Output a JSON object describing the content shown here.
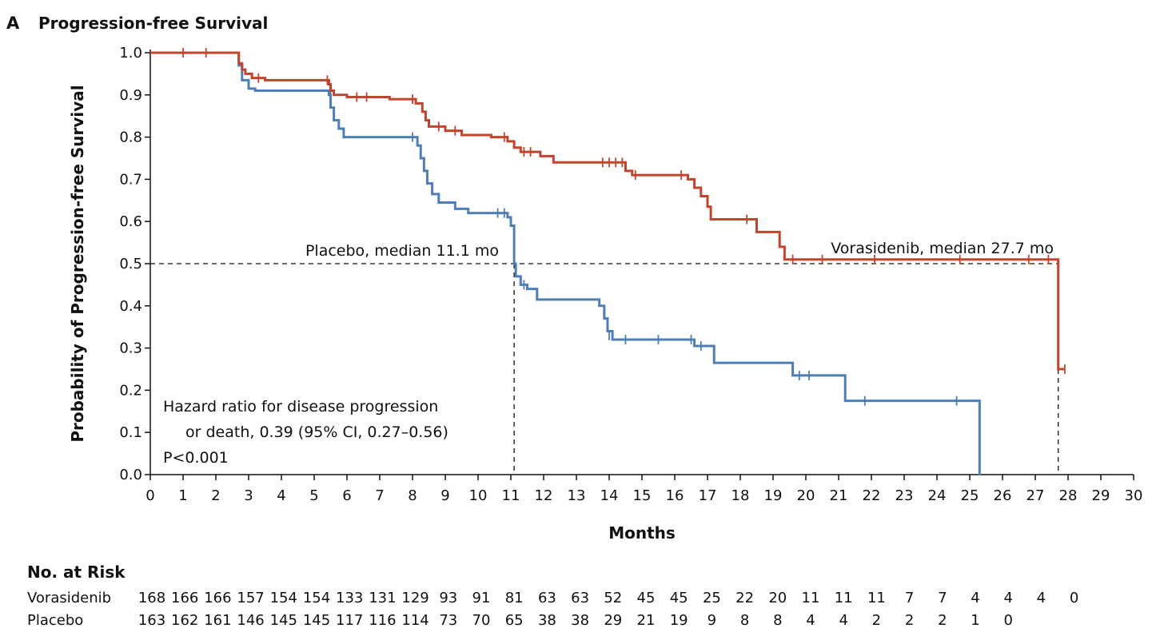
{
  "chart_data": {
    "type": "line",
    "panel_label": "A",
    "title": "Progression-free Survival",
    "xlabel": "Months",
    "ylabel": "Probability of Progression-free Survival",
    "xlim": [
      0,
      30
    ],
    "ylim": [
      0,
      1.0
    ],
    "xticks": [
      "0",
      "1",
      "2",
      "3",
      "4",
      "5",
      "6",
      "7",
      "8",
      "9",
      "10",
      "11",
      "12",
      "13",
      "14",
      "15",
      "16",
      "17",
      "18",
      "19",
      "20",
      "21",
      "22",
      "23",
      "24",
      "25",
      "26",
      "27",
      "28",
      "29",
      "30"
    ],
    "yticks": [
      "0.0",
      "0.1",
      "0.2",
      "0.3",
      "0.4",
      "0.5",
      "0.6",
      "0.7",
      "0.8",
      "0.9",
      "1.0"
    ],
    "colors": {
      "vorasidenib": "#c0452c",
      "placebo": "#4f7db8"
    },
    "series": [
      {
        "name": "Vorasidenib",
        "steps": [
          [
            0,
            1.0
          ],
          [
            2.7,
            0.975
          ],
          [
            2.8,
            0.96
          ],
          [
            2.9,
            0.95
          ],
          [
            3.1,
            0.94
          ],
          [
            3.5,
            0.935
          ],
          [
            5.45,
            0.925
          ],
          [
            5.5,
            0.91
          ],
          [
            5.6,
            0.9
          ],
          [
            6.0,
            0.895
          ],
          [
            7.3,
            0.89
          ],
          [
            8.1,
            0.88
          ],
          [
            8.3,
            0.86
          ],
          [
            8.4,
            0.84
          ],
          [
            8.5,
            0.825
          ],
          [
            9.0,
            0.815
          ],
          [
            9.5,
            0.805
          ],
          [
            10.4,
            0.8
          ],
          [
            10.9,
            0.79
          ],
          [
            11.1,
            0.775
          ],
          [
            11.3,
            0.765
          ],
          [
            11.9,
            0.755
          ],
          [
            12.3,
            0.74
          ],
          [
            14.5,
            0.72
          ],
          [
            14.7,
            0.71
          ],
          [
            16.4,
            0.7
          ],
          [
            16.6,
            0.68
          ],
          [
            16.8,
            0.66
          ],
          [
            17.0,
            0.635
          ],
          [
            17.1,
            0.605
          ],
          [
            18.5,
            0.575
          ],
          [
            19.2,
            0.54
          ],
          [
            19.35,
            0.51
          ],
          [
            27.7,
            0.25
          ],
          [
            27.9,
            0.25
          ]
        ],
        "censored": [
          [
            1.0,
            1.0
          ],
          [
            1.7,
            1.0
          ],
          [
            3.3,
            0.94
          ],
          [
            5.4,
            0.935
          ],
          [
            6.3,
            0.895
          ],
          [
            6.6,
            0.895
          ],
          [
            8.0,
            0.89
          ],
          [
            8.8,
            0.825
          ],
          [
            9.3,
            0.815
          ],
          [
            10.8,
            0.8
          ],
          [
            11.4,
            0.765
          ],
          [
            11.6,
            0.765
          ],
          [
            13.8,
            0.74
          ],
          [
            14.0,
            0.74
          ],
          [
            14.2,
            0.74
          ],
          [
            14.4,
            0.74
          ],
          [
            14.8,
            0.71
          ],
          [
            16.2,
            0.71
          ],
          [
            18.2,
            0.605
          ],
          [
            19.6,
            0.51
          ],
          [
            20.5,
            0.51
          ],
          [
            22.1,
            0.51
          ],
          [
            24.7,
            0.51
          ],
          [
            26.8,
            0.51
          ],
          [
            27.4,
            0.51
          ],
          [
            27.9,
            0.25
          ]
        ],
        "median_label": "Vorasidenib, median 27.7 mo",
        "median": 27.7
      },
      {
        "name": "Placebo",
        "steps": [
          [
            0,
            1.0
          ],
          [
            2.7,
            0.97
          ],
          [
            2.8,
            0.935
          ],
          [
            3.0,
            0.915
          ],
          [
            3.2,
            0.91
          ],
          [
            5.45,
            0.9
          ],
          [
            5.5,
            0.87
          ],
          [
            5.6,
            0.84
          ],
          [
            5.75,
            0.82
          ],
          [
            5.9,
            0.8
          ],
          [
            8.15,
            0.78
          ],
          [
            8.25,
            0.75
          ],
          [
            8.35,
            0.72
          ],
          [
            8.45,
            0.69
          ],
          [
            8.6,
            0.665
          ],
          [
            8.8,
            0.645
          ],
          [
            9.3,
            0.63
          ],
          [
            9.7,
            0.62
          ],
          [
            10.9,
            0.61
          ],
          [
            11.0,
            0.59
          ],
          [
            11.1,
            0.5
          ],
          [
            11.15,
            0.47
          ],
          [
            11.3,
            0.45
          ],
          [
            11.5,
            0.44
          ],
          [
            11.8,
            0.415
          ],
          [
            13.7,
            0.4
          ],
          [
            13.85,
            0.37
          ],
          [
            13.95,
            0.34
          ],
          [
            14.1,
            0.32
          ],
          [
            16.6,
            0.305
          ],
          [
            17.2,
            0.265
          ],
          [
            19.6,
            0.235
          ],
          [
            21.2,
            0.175
          ],
          [
            25.3,
            0.0
          ]
        ],
        "censored": [
          [
            5.5,
            0.91
          ],
          [
            8.0,
            0.8
          ],
          [
            10.6,
            0.62
          ],
          [
            10.8,
            0.62
          ],
          [
            11.1,
            0.58
          ],
          [
            11.4,
            0.45
          ],
          [
            14.0,
            0.33
          ],
          [
            14.5,
            0.32
          ],
          [
            15.5,
            0.32
          ],
          [
            16.5,
            0.32
          ],
          [
            16.8,
            0.305
          ],
          [
            19.8,
            0.235
          ],
          [
            20.1,
            0.235
          ],
          [
            21.8,
            0.175
          ],
          [
            24.6,
            0.175
          ],
          [
            25.3,
            0.01
          ]
        ],
        "median_label": "Placebo, median 11.1 mo",
        "median": 11.1
      }
    ],
    "annotation": [
      "Hazard ratio for disease progression",
      "or death, 0.39 (95% CI, 0.27–0.56)",
      "P<0.001"
    ],
    "at_risk": {
      "title": "No. at Risk",
      "rows": [
        {
          "label": "Vorasidenib",
          "values": [
            "168",
            "166",
            "166",
            "157",
            "154",
            "154",
            "133",
            "131",
            "129",
            "93",
            "91",
            "81",
            "63",
            "63",
            "52",
            "45",
            "45",
            "25",
            "22",
            "20",
            "11",
            "11",
            "11",
            "7",
            "7",
            "4",
            "4",
            "4",
            "0"
          ]
        },
        {
          "label": "Placebo",
          "values": [
            "163",
            "162",
            "161",
            "146",
            "145",
            "145",
            "117",
            "116",
            "114",
            "73",
            "70",
            "65",
            "38",
            "38",
            "29",
            "21",
            "19",
            "9",
            "8",
            "8",
            "4",
            "4",
            "2",
            "2",
            "2",
            "1",
            "0"
          ]
        }
      ]
    }
  }
}
